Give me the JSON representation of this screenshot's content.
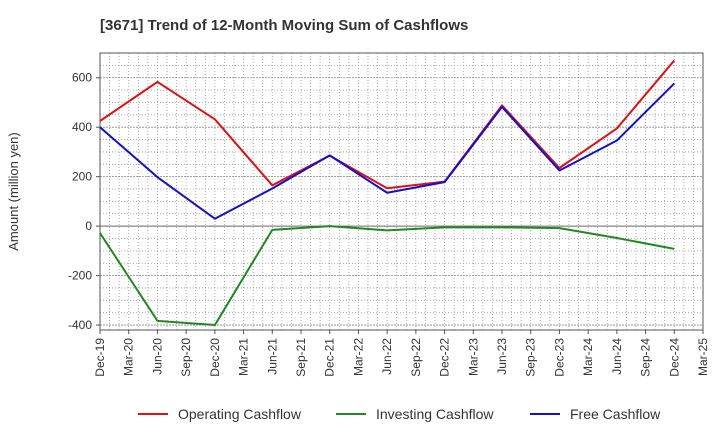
{
  "chart_data": {
    "type": "line",
    "title": "[3671]  Trend of 12-Month Moving Sum of Cashflows",
    "ylabel": "Amount (million yen)",
    "xlabel": "",
    "ylim": [
      -420,
      700
    ],
    "yticks": [
      -400,
      -200,
      0,
      200,
      400,
      600
    ],
    "x_ticks": [
      "Dec-19",
      "Mar-20",
      "Jun-20",
      "Sep-20",
      "Dec-20",
      "Mar-21",
      "Jun-21",
      "Sep-21",
      "Dec-21",
      "Mar-22",
      "Jun-22",
      "Sep-22",
      "Dec-22",
      "Mar-23",
      "Jun-23",
      "Sep-23",
      "Dec-23",
      "Mar-24",
      "Jun-24",
      "Sep-24",
      "Dec-24",
      "Mar-25"
    ],
    "x": [
      "Dec-19",
      "Jun-20",
      "Dec-20",
      "Jun-21",
      "Dec-21",
      "Jun-22",
      "Dec-22",
      "Jun-23",
      "Dec-23",
      "Jun-24",
      "Dec-24"
    ],
    "grid": true,
    "legend_position": "bottom",
    "series": [
      {
        "name": "Operating Cashflow",
        "color": "#dd1111",
        "values": [
          425,
          583,
          432,
          165,
          285,
          153,
          180,
          488,
          235,
          395,
          670
        ]
      },
      {
        "name": "Investing Cashflow",
        "color": "#228822",
        "values": [
          -28,
          -383,
          -400,
          -15,
          0,
          -17,
          -5,
          -5,
          -8,
          -48,
          -92
        ]
      },
      {
        "name": "Free Cashflow",
        "color": "#1111cc",
        "values": [
          400,
          198,
          30,
          152,
          286,
          135,
          178,
          482,
          225,
          346,
          577
        ]
      }
    ]
  }
}
